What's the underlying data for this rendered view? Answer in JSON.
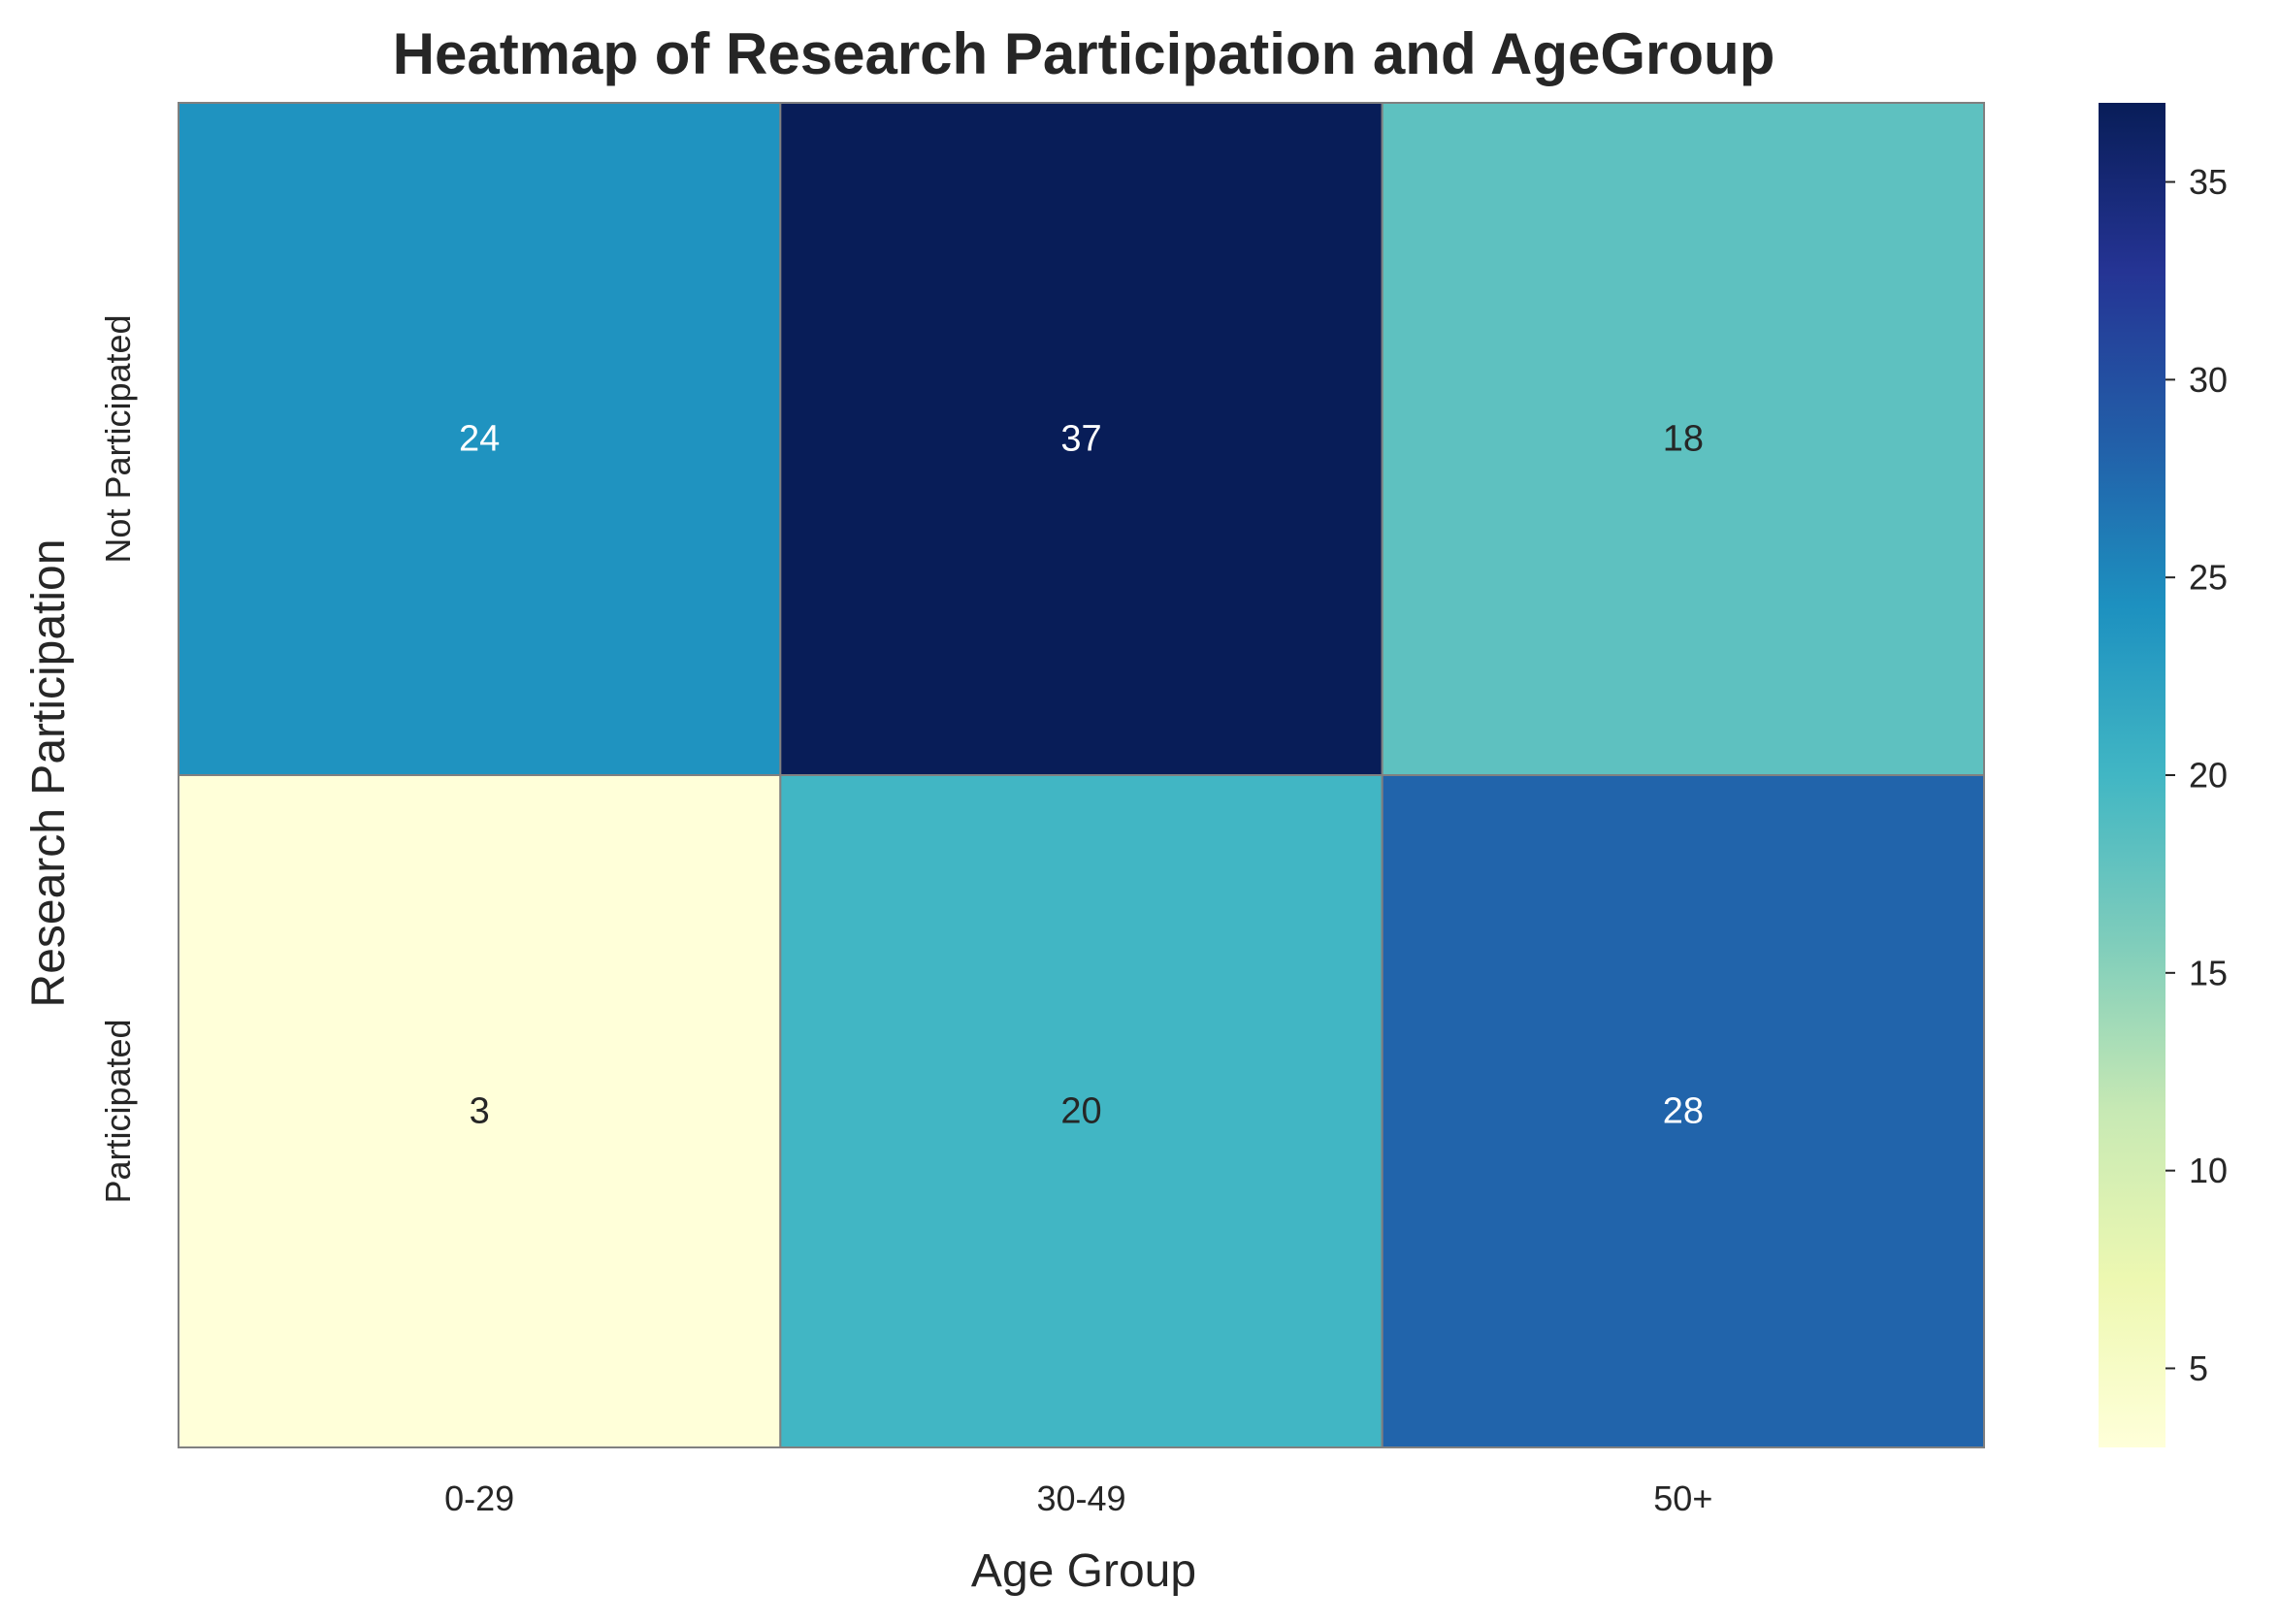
{
  "chart_data": {
    "type": "heatmap",
    "title": "Heatmap of Research Participation and AgeGroup",
    "xlabel": "Age Group",
    "ylabel": "Research Participation",
    "x_categories": [
      "0-29",
      "30-49",
      "50+"
    ],
    "y_categories": [
      "Not Participated",
      "Participated"
    ],
    "values": [
      [
        24,
        37,
        18
      ],
      [
        3,
        20,
        28
      ]
    ],
    "value_labels": [
      [
        "24",
        "37",
        "18"
      ],
      [
        "3",
        "20",
        "28"
      ]
    ],
    "colormap": "YlGnBu",
    "vmin": 3,
    "vmax": 37,
    "colorbar_ticks": [
      5,
      10,
      15,
      20,
      25,
      30,
      35
    ],
    "colorbar_tick_labels": [
      "5",
      "10",
      "15",
      "20",
      "25",
      "30",
      "35"
    ],
    "cell_border_color": "#808080"
  }
}
